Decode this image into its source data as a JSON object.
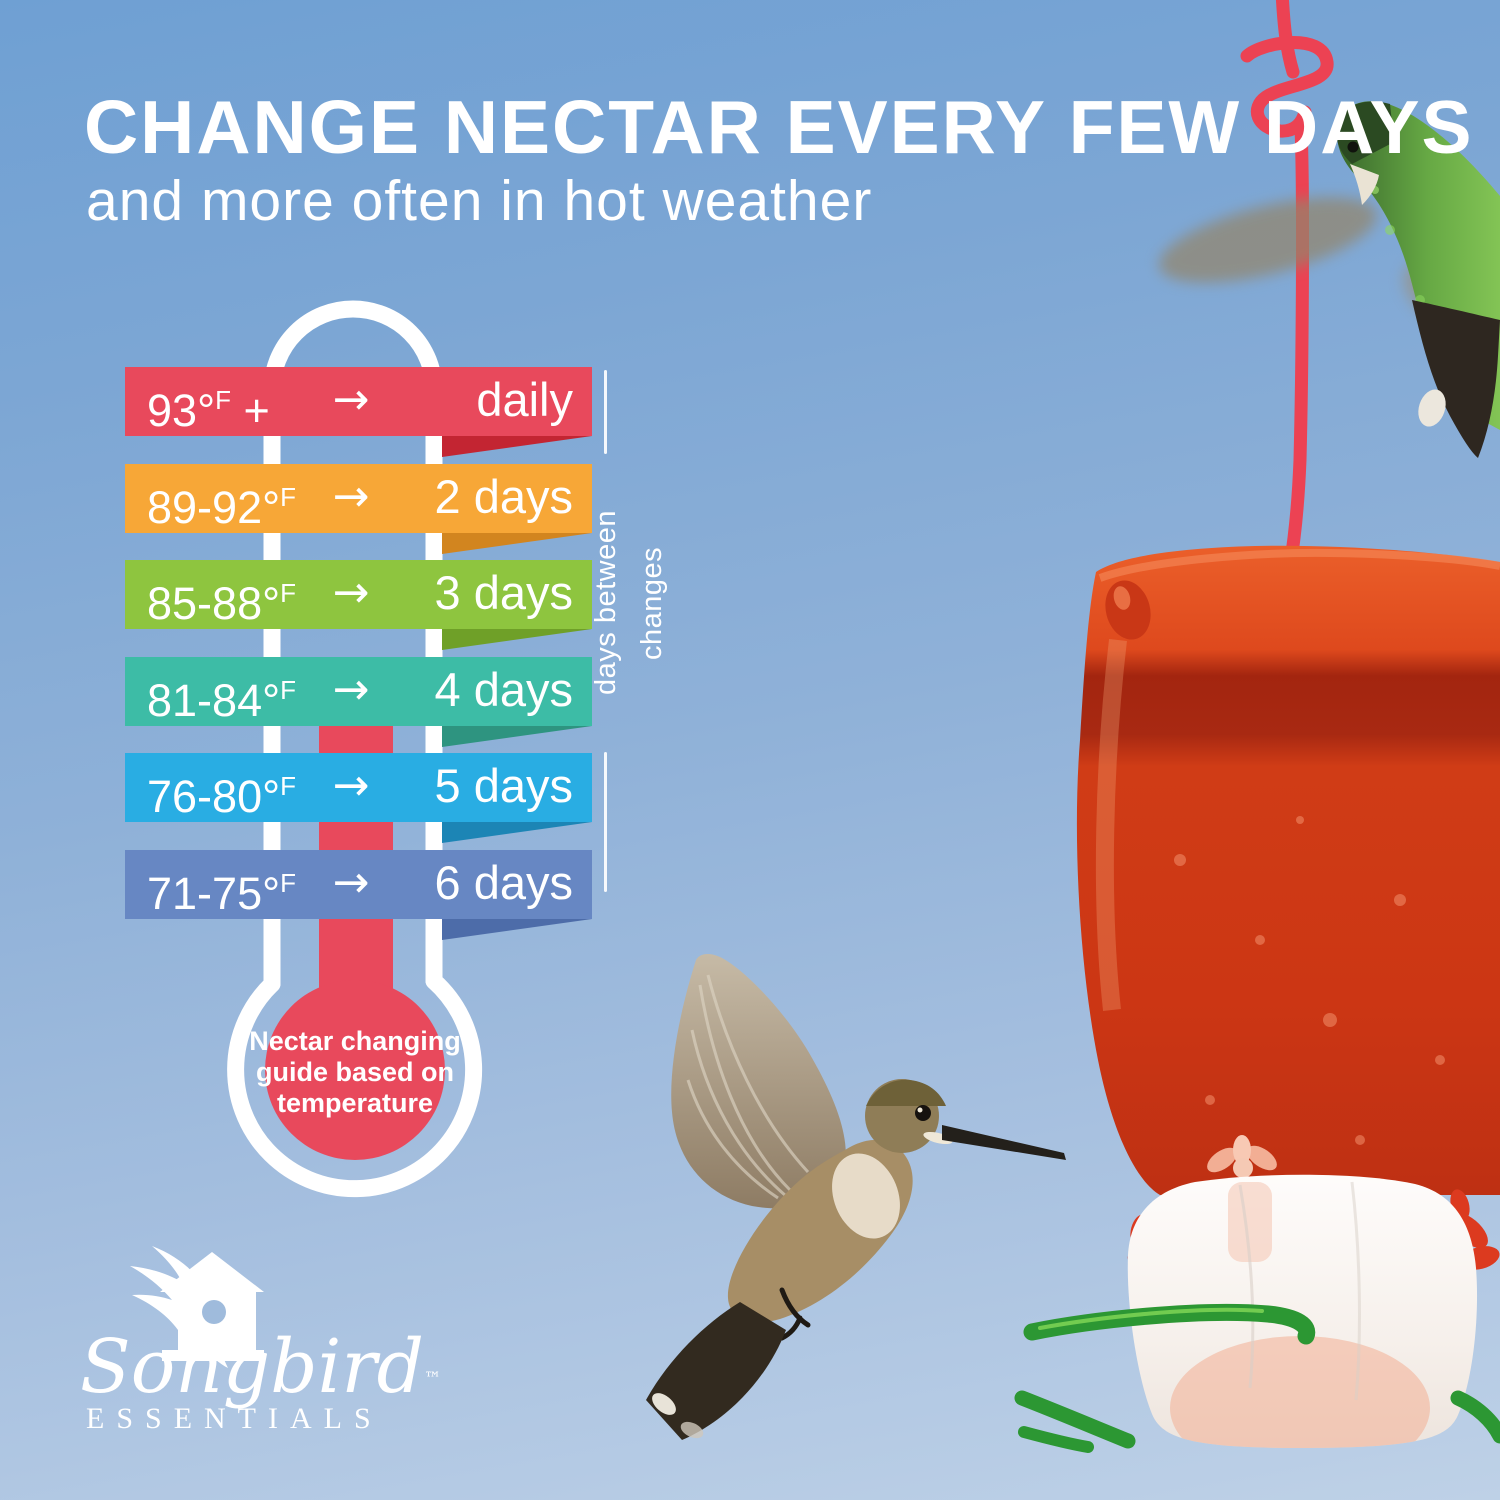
{
  "header": {
    "title": "CHANGE NECTAR EVERY FEW DAYS",
    "subtitle": "and more often in hot weather"
  },
  "chart_data": {
    "type": "table",
    "title": "Nectar changing guide based on temperature",
    "columns": [
      "temperature (°F)",
      "days between changes"
    ],
    "rows": [
      {
        "temp": "93",
        "unit": "°F",
        "suffix": "+",
        "arrow": "→",
        "days": "daily",
        "color": "#E8495C",
        "fold_color": "#C32532"
      },
      {
        "temp": "89-92",
        "unit": "°F",
        "suffix": "",
        "arrow": "→",
        "days": "2 days",
        "color": "#F7A737",
        "fold_color": "#D2851F"
      },
      {
        "temp": "85-88",
        "unit": "°F",
        "suffix": "",
        "arrow": "→",
        "days": "3 days",
        "color": "#8EC53F",
        "fold_color": "#6FA028"
      },
      {
        "temp": "81-84",
        "unit": "°F",
        "suffix": "",
        "arrow": "→",
        "days": "4 days",
        "color": "#3DBCA6",
        "fold_color": "#2E9480"
      },
      {
        "temp": "76-80",
        "unit": "°F",
        "suffix": "",
        "arrow": "→",
        "days": "5 days",
        "color": "#29ADE3",
        "fold_color": "#1C85B5"
      },
      {
        "temp": "71-75",
        "unit": "°F",
        "suffix": "",
        "arrow": "→",
        "days": "6 days",
        "color": "#6787C3",
        "fold_color": "#4D6CA9"
      }
    ],
    "axis_label": "days between changes",
    "note_lines": [
      "Nectar changing",
      "guide based on",
      "temperature"
    ],
    "mercury_color": "#E8495C",
    "outline_color": "#FFFFFF"
  },
  "logo": {
    "brand": "Songbird",
    "trademark": "™",
    "wordmark_sub": "ESSENTIALS"
  },
  "scene": {
    "sky_top": "#6FA0D3",
    "sky_bottom": "#BED1E7",
    "wire_color": "#EC4253",
    "feeder_red": "#D23D17",
    "perch_green": "#2C9733"
  }
}
